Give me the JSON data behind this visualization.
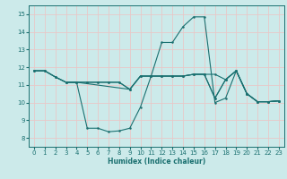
{
  "xlabel": "Humidex (Indice chaleur)",
  "xlim": [
    -0.5,
    23.5
  ],
  "ylim": [
    7.5,
    15.5
  ],
  "yticks": [
    8,
    9,
    10,
    11,
    12,
    13,
    14,
    15
  ],
  "xticks": [
    0,
    1,
    2,
    3,
    4,
    5,
    6,
    7,
    8,
    9,
    10,
    11,
    12,
    13,
    14,
    15,
    16,
    17,
    18,
    19,
    20,
    21,
    22,
    23
  ],
  "bg_color": "#cceaea",
  "grid_color": "#e8c8c8",
  "line_color": "#1a7070",
  "lines": [
    {
      "x": [
        0,
        1,
        2,
        3,
        4,
        5,
        6,
        7,
        8,
        9,
        10,
        11,
        12,
        13,
        14,
        15,
        16,
        17,
        18,
        19,
        20,
        21,
        22,
        23
      ],
      "y": [
        11.8,
        11.8,
        11.45,
        11.15,
        11.15,
        8.55,
        8.55,
        8.35,
        8.4,
        8.55,
        9.75,
        11.5,
        13.4,
        13.4,
        14.3,
        14.85,
        14.85,
        10.0,
        10.25,
        11.8,
        10.5,
        10.05,
        10.05,
        10.1
      ]
    },
    {
      "x": [
        0,
        1,
        2,
        3,
        4,
        9,
        10,
        11,
        12,
        13,
        14,
        15,
        16,
        17,
        18,
        19,
        20,
        21,
        22,
        23
      ],
      "y": [
        11.8,
        11.8,
        11.45,
        11.15,
        11.15,
        10.75,
        11.5,
        11.5,
        11.5,
        11.5,
        11.5,
        11.6,
        11.6,
        10.25,
        11.3,
        11.8,
        10.5,
        10.05,
        10.05,
        10.1
      ]
    },
    {
      "x": [
        3,
        4,
        5,
        6,
        7,
        8,
        9,
        10,
        11,
        12,
        13,
        14,
        15,
        16,
        17,
        18,
        19,
        20,
        21,
        22,
        23
      ],
      "y": [
        11.15,
        11.15,
        11.15,
        11.15,
        11.15,
        11.15,
        10.75,
        11.5,
        11.5,
        11.5,
        11.5,
        11.5,
        11.6,
        11.6,
        10.25,
        11.3,
        11.8,
        10.5,
        10.05,
        10.05,
        10.1
      ]
    },
    {
      "x": [
        0,
        1,
        2,
        3,
        4,
        5,
        6,
        7,
        8,
        9,
        10,
        11,
        12,
        13,
        14,
        15,
        16,
        17,
        18,
        19,
        20,
        21,
        22,
        23
      ],
      "y": [
        11.8,
        11.8,
        11.45,
        11.15,
        11.15,
        11.15,
        11.15,
        11.15,
        11.15,
        10.75,
        11.5,
        11.5,
        11.5,
        11.5,
        11.5,
        11.6,
        11.6,
        11.6,
        11.3,
        11.8,
        10.5,
        10.05,
        10.05,
        10.1
      ]
    }
  ]
}
